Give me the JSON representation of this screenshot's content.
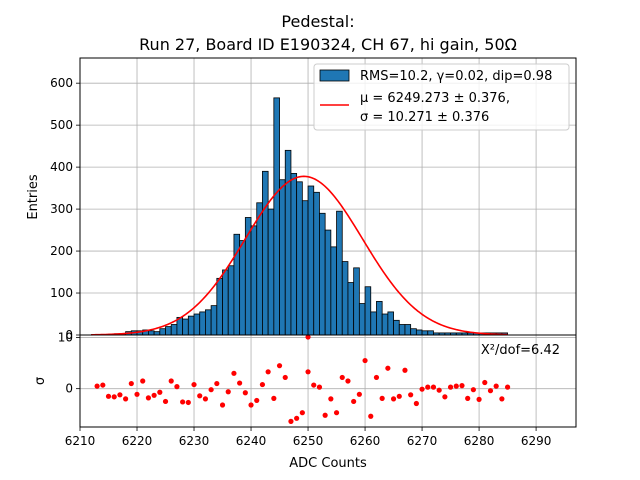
{
  "title_line1": "Pedestal:",
  "title_line2": "Run 27, Board ID E190324, CH 67, hi gain, 50Ω",
  "legend": {
    "hist_label": "RMS=10.2, γ=0.02, dip=0.98",
    "fit_line1": "μ = 6249.273 ± 0.376,",
    "fit_line2": "σ = 10.271 ± 0.376"
  },
  "chi2_label": "X²/dof=6.42",
  "colors": {
    "bar": "#1f77b4",
    "fit": "#ff0000",
    "resid": "#ff0000"
  },
  "chart_data": [
    {
      "type": "bar",
      "panel": "top",
      "ylabel": "Entries",
      "xlim": [
        6210,
        6297
      ],
      "ylim": [
        0,
        660
      ],
      "yticks": [
        0,
        100,
        200,
        300,
        400,
        500,
        600
      ],
      "grid": true,
      "legend_position": "top-right",
      "bin_start": 6212,
      "bin_width": 1,
      "values": [
        1,
        1,
        1,
        2,
        3,
        3,
        8,
        10,
        10,
        12,
        10,
        8,
        15,
        20,
        25,
        42,
        38,
        45,
        50,
        55,
        60,
        70,
        135,
        155,
        165,
        240,
        225,
        280,
        260,
        315,
        390,
        300,
        565,
        370,
        440,
        385,
        365,
        320,
        355,
        340,
        290,
        250,
        210,
        295,
        175,
        125,
        160,
        75,
        115,
        55,
        80,
        50,
        55,
        35,
        25,
        25,
        15,
        12,
        10,
        10,
        5,
        5,
        5,
        5,
        5,
        5,
        5,
        5,
        5,
        5,
        5,
        5,
        5
      ],
      "fit": {
        "mu": 6249.273,
        "sigma": 10.271,
        "amplitude": 378
      }
    },
    {
      "type": "scatter",
      "panel": "bottom",
      "xlabel": "ADC Counts",
      "ylabel": "σ",
      "xlim": [
        6210,
        6297
      ],
      "ylim": [
        -7.5,
        10.5
      ],
      "yticks": [
        0,
        10
      ],
      "xticks": [
        6210,
        6220,
        6230,
        6240,
        6250,
        6260,
        6270,
        6280,
        6290
      ],
      "grid": true,
      "x": [
        6213,
        6214,
        6215,
        6216,
        6217,
        6218,
        6219,
        6220,
        6221,
        6222,
        6223,
        6224,
        6225,
        6226,
        6227,
        6228,
        6229,
        6230,
        6231,
        6232,
        6233,
        6234,
        6235,
        6236,
        6237,
        6238,
        6239,
        6240,
        6241,
        6242,
        6243,
        6244,
        6245,
        6246,
        6247,
        6248,
        6249,
        6250,
        6251,
        6252,
        6253,
        6254,
        6255,
        6256,
        6257,
        6258,
        6259,
        6260,
        6261,
        6262,
        6263,
        6264,
        6265,
        6266,
        6267,
        6268,
        6269,
        6270,
        6271,
        6272,
        6273,
        6274,
        6275,
        6276,
        6277,
        6278,
        6279,
        6280,
        6281,
        6282,
        6283,
        6284,
        6285
      ],
      "y": [
        0.5,
        0.7,
        -1.5,
        -1.6,
        -1.2,
        -2.0,
        1.0,
        -1.1,
        1.5,
        -1.8,
        -1.3,
        -0.7,
        -2.5,
        1.5,
        0.4,
        -2.6,
        -2.7,
        0.8,
        -1.4,
        -2.0,
        -0.2,
        1.0,
        -3.2,
        -0.6,
        3.0,
        1.1,
        -0.8,
        -3.2,
        -2.3,
        0.8,
        3.3,
        -1.9,
        4.5,
        2.2,
        -6.4,
        -5.8,
        -4.7,
        3.3,
        0.7,
        0.3,
        -5.2,
        -2.0,
        -4.7,
        2.2,
        1.5,
        -2.5,
        -1.1,
        5.5,
        -5.4,
        2.2,
        -1.9,
        4.0,
        -2.0,
        -1.5,
        3.6,
        -1.2,
        -2.9,
        -0.1,
        0.3,
        0.3,
        -0.3,
        -1.6,
        0.3,
        0.5,
        0.6,
        -1.9,
        -0.2,
        -2.1,
        1.2,
        -0.4,
        0.5,
        -2.0,
        0.3
      ],
      "extra_points": [
        {
          "x": 6250,
          "y": 10.1
        }
      ]
    }
  ]
}
